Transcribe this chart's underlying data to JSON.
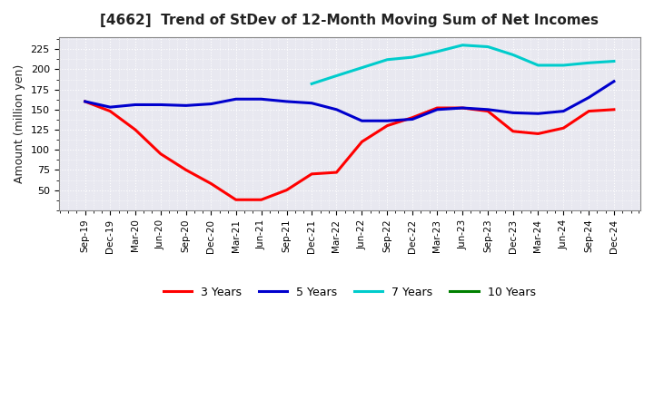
{
  "title": "[4662]  Trend of StDev of 12-Month Moving Sum of Net Incomes",
  "ylabel": "Amount (million yen)",
  "background_color": "#ffffff",
  "plot_bg_color": "#e8e8f0",
  "grid_color": "#ffffff",
  "ylim": [
    25,
    240
  ],
  "yticks": [
    50,
    75,
    100,
    125,
    150,
    175,
    200,
    225
  ],
  "series": {
    "3 Years": {
      "color": "#ff0000",
      "linewidth": 2.2,
      "x_labels": [
        "Sep-19",
        "Dec-19",
        "Mar-20",
        "Jun-20",
        "Sep-20",
        "Dec-20",
        "Mar-21",
        "Jun-21",
        "Sep-21",
        "Dec-21",
        "Mar-22",
        "Jun-22",
        "Sep-22",
        "Dec-22",
        "Mar-23",
        "Jun-23",
        "Sep-23",
        "Dec-23",
        "Mar-24",
        "Jun-24",
        "Sep-24",
        "Dec-24"
      ],
      "y": [
        160,
        148,
        125,
        95,
        75,
        58,
        38,
        38,
        50,
        70,
        72,
        110,
        130,
        140,
        152,
        152,
        148,
        123,
        120,
        127,
        148,
        150
      ]
    },
    "5 Years": {
      "color": "#0000cd",
      "linewidth": 2.2,
      "x_labels": [
        "Sep-19",
        "Dec-19",
        "Mar-20",
        "Jun-20",
        "Sep-20",
        "Dec-20",
        "Mar-21",
        "Jun-21",
        "Sep-21",
        "Dec-21",
        "Mar-22",
        "Jun-22",
        "Sep-22",
        "Dec-22",
        "Mar-23",
        "Jun-23",
        "Sep-23",
        "Dec-23",
        "Mar-24",
        "Jun-24",
        "Sep-24",
        "Dec-24"
      ],
      "y": [
        160,
        153,
        156,
        156,
        155,
        157,
        163,
        163,
        160,
        158,
        150,
        136,
        136,
        138,
        150,
        152,
        150,
        146,
        145,
        148,
        165,
        185
      ]
    },
    "7 Years": {
      "color": "#00cccc",
      "linewidth": 2.2,
      "x_labels": [
        "Dec-21",
        "Mar-22",
        "Jun-22",
        "Sep-22",
        "Dec-22",
        "Mar-23",
        "Jun-23",
        "Sep-23",
        "Dec-23",
        "Mar-24",
        "Jun-24",
        "Sep-24",
        "Dec-24"
      ],
      "y": [
        182,
        192,
        202,
        212,
        215,
        222,
        230,
        228,
        218,
        205,
        205,
        208,
        210
      ]
    },
    "10 Years": {
      "color": "#008000",
      "linewidth": 2.2,
      "x_labels": [],
      "y": []
    }
  },
  "legend": {
    "labels": [
      "3 Years",
      "5 Years",
      "7 Years",
      "10 Years"
    ],
    "colors": [
      "#ff0000",
      "#0000cd",
      "#00cccc",
      "#008000"
    ],
    "loc": "lower center",
    "ncol": 4
  }
}
